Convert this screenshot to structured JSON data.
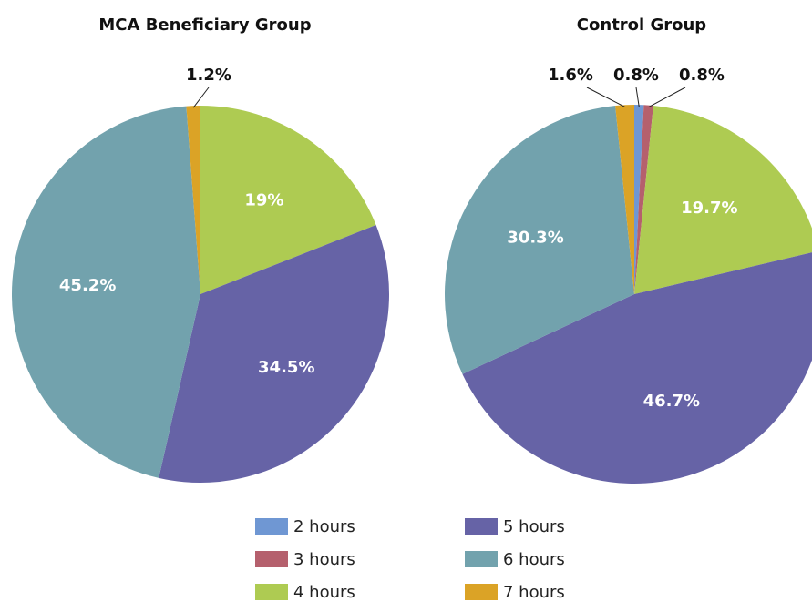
{
  "chart_data": [
    {
      "type": "pie",
      "title": "MCA Beneficiary Group",
      "categories": [
        "2 hours",
        "3 hours",
        "4 hours",
        "5 hours",
        "6 hours",
        "7 hours"
      ],
      "values": [
        null,
        null,
        19,
        34.5,
        45.2,
        1.2
      ],
      "value_labels": [
        null,
        null,
        "19%",
        "34.5%",
        "45.2%",
        "1.2%"
      ],
      "colors": [
        "#6f97d3",
        "#b5606d",
        "#aecb52",
        "#6663a6",
        "#72a2ad",
        "#dba326"
      ]
    },
    {
      "type": "pie",
      "title": "Control Group",
      "categories": [
        "2 hours",
        "3 hours",
        "4 hours",
        "5 hours",
        "6 hours",
        "7 hours"
      ],
      "values": [
        0.8,
        0.8,
        19.7,
        46.7,
        30.3,
        1.6
      ],
      "value_labels": [
        "0.8%",
        "0.8%",
        "19.7%",
        "46.7%",
        "30.3%",
        "1.6%"
      ],
      "colors": [
        "#6f97d3",
        "#b5606d",
        "#aecb52",
        "#6663a6",
        "#72a2ad",
        "#dba326"
      ]
    }
  ]
}
